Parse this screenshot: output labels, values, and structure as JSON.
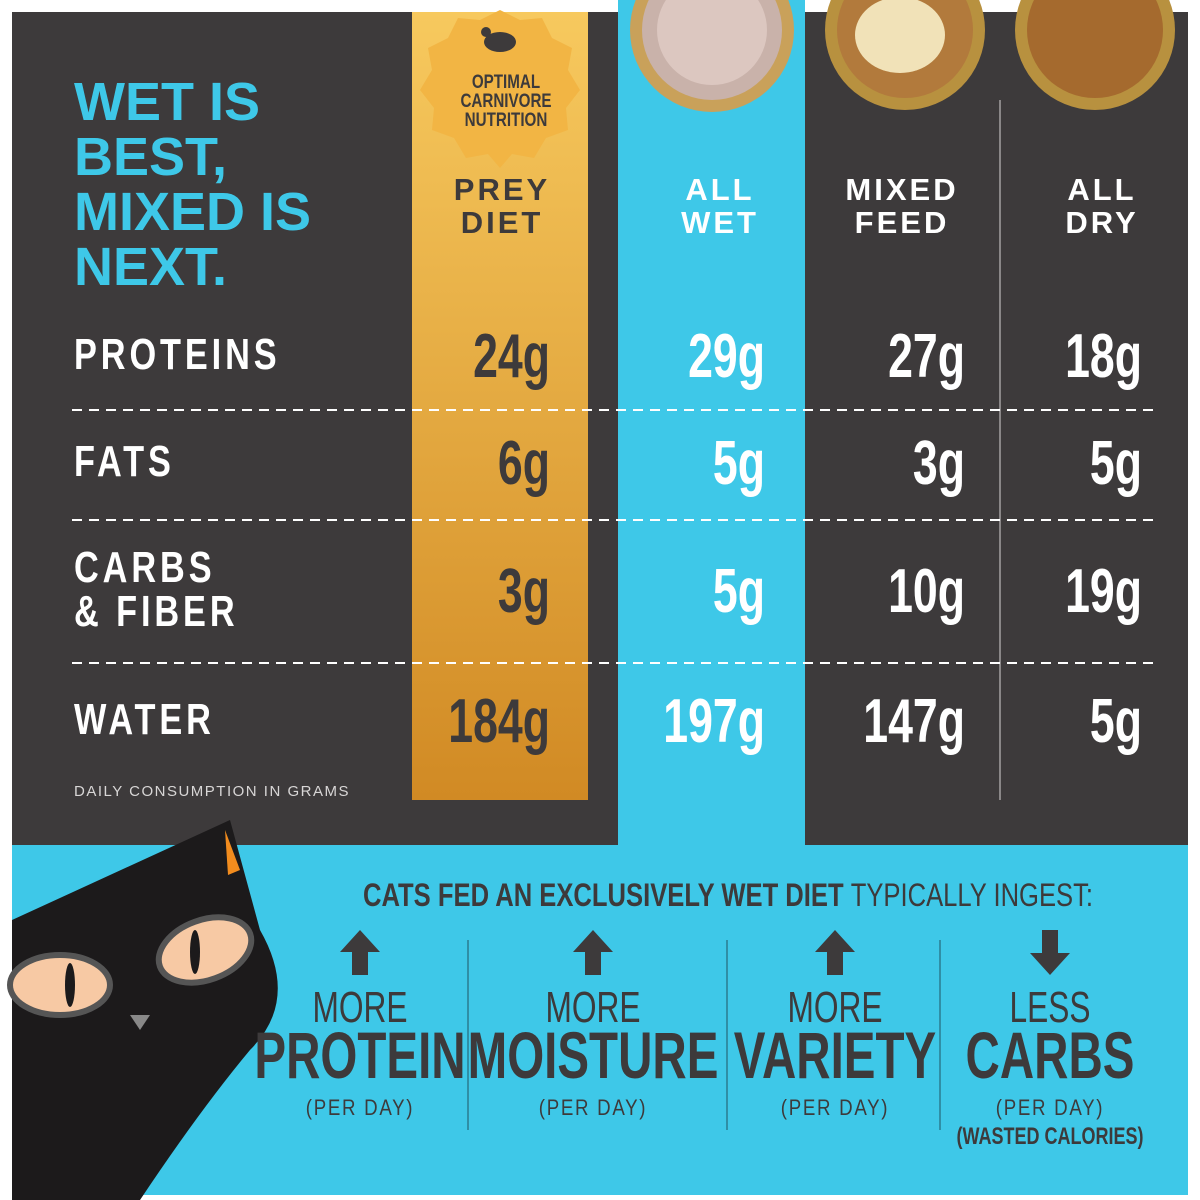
{
  "title_lines": [
    "WET IS",
    "BEST,",
    "MIXED IS",
    "NEXT."
  ],
  "badge": [
    "OPTIMAL",
    "CARNIVORE",
    "NUTRITION"
  ],
  "table": {
    "columns": [
      [
        "PREY",
        "DIET"
      ],
      [
        "ALL",
        "WET"
      ],
      [
        "MIXED",
        "FEED"
      ],
      [
        "ALL",
        "DRY"
      ]
    ],
    "rows": [
      {
        "label": [
          "PROTEINS"
        ],
        "values": [
          "24g",
          "29g",
          "27g",
          "18g"
        ]
      },
      {
        "label": [
          "FATS"
        ],
        "values": [
          "6g",
          "5g",
          "3g",
          "5g"
        ]
      },
      {
        "label": [
          "CARBS",
          "& FIBER"
        ],
        "values": [
          "3g",
          "5g",
          "10g",
          "19g"
        ]
      },
      {
        "label": [
          "WATER"
        ],
        "values": [
          "184g",
          "197g",
          "147g",
          "5g"
        ]
      }
    ]
  },
  "footnote": "DAILY CONSUMPTION IN GRAMS",
  "summary": {
    "lead": "CATS FED AN EXCLUSIVELY WET DIET",
    "rest": "TYPICALLY INGEST:",
    "items": [
      {
        "qualifier": "MORE",
        "subject": "PROTEIN",
        "unit": "(PER DAY)"
      },
      {
        "qualifier": "MORE",
        "subject": "MOISTURE",
        "unit": "(PER DAY)"
      },
      {
        "qualifier": "MORE",
        "subject": "VARIETY",
        "unit": "(PER DAY)"
      },
      {
        "qualifier": "LESS",
        "subject": "CARBS",
        "unit": "(PER DAY)",
        "note": "(WASTED CALORIES)"
      }
    ]
  }
}
